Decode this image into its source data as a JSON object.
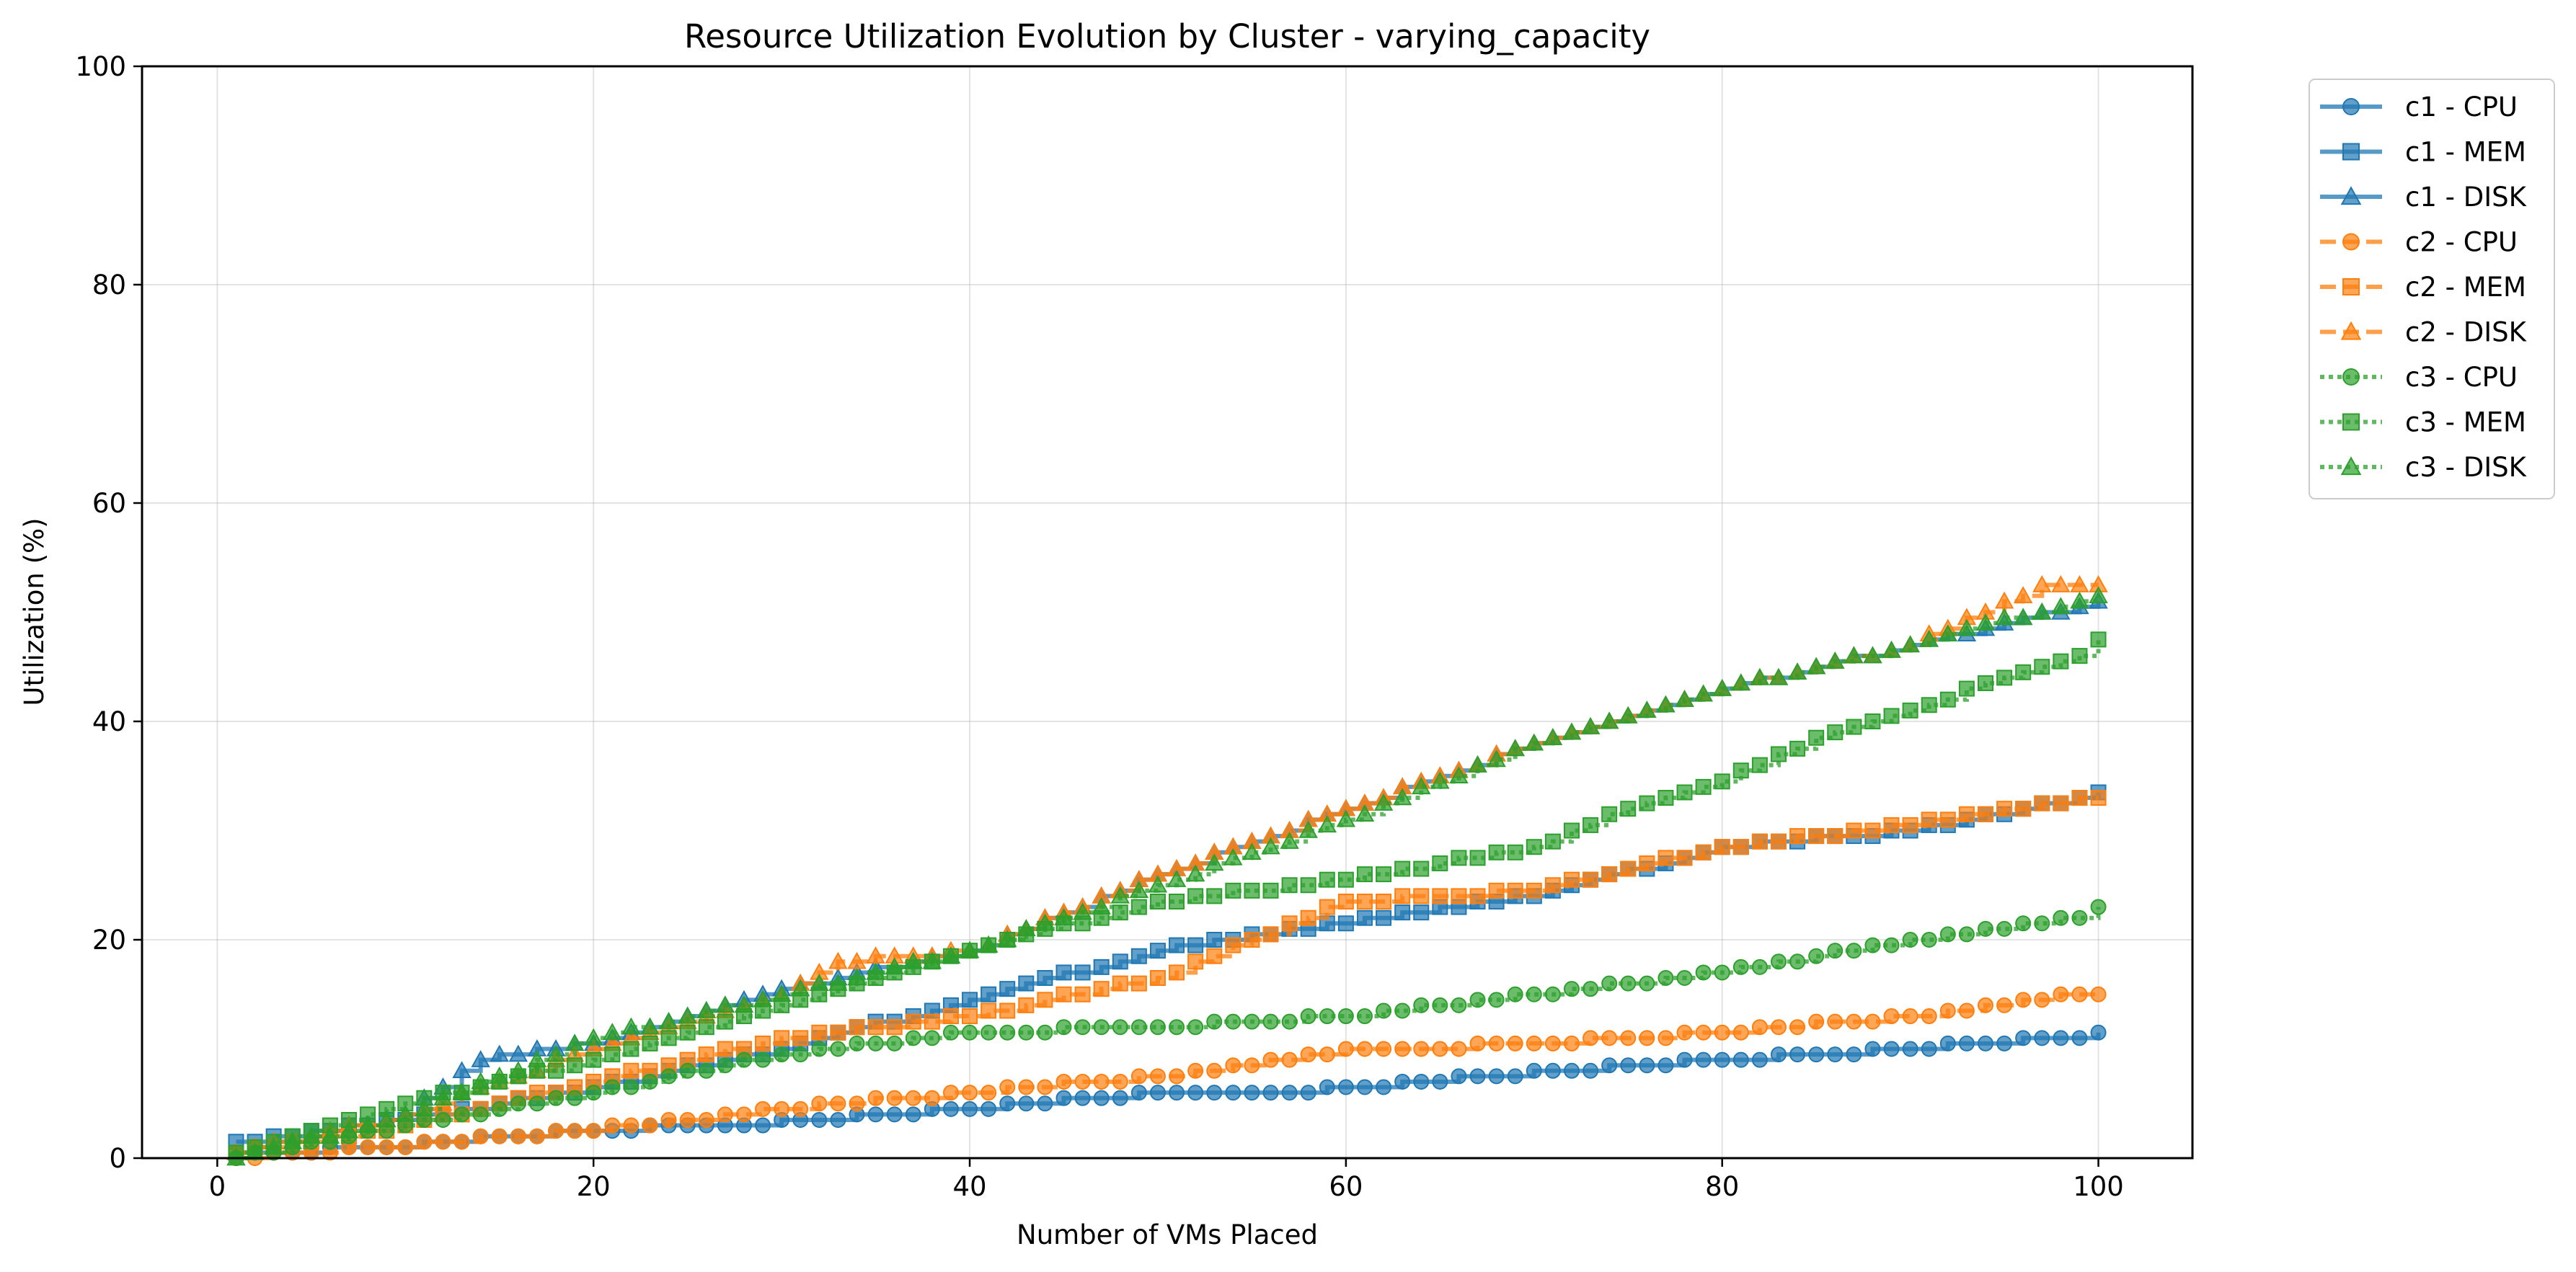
{
  "chart_data": {
    "type": "line",
    "title": "Resource Utilization Evolution by Cluster - varying_capacity",
    "xlabel": "Number of VMs Placed",
    "ylabel": "Utilization (%)",
    "xlim": [
      -4,
      105
    ],
    "ylim": [
      0,
      100
    ],
    "xticks": [
      0,
      20,
      40,
      60,
      80,
      100
    ],
    "yticks": [
      0,
      20,
      40,
      60,
      80,
      100
    ],
    "grid": true,
    "legend_position": "outside-top-right",
    "series": [
      {
        "name": "c1 - CPU",
        "color": "#1f77b4",
        "marker": "circle",
        "linestyle": "solid",
        "points": [
          [
            1,
            0.2
          ],
          [
            10,
            1.2
          ],
          [
            20,
            2.6
          ],
          [
            30,
            3.3
          ],
          [
            40,
            4.5
          ],
          [
            50,
            6
          ],
          [
            60,
            6.3
          ],
          [
            70,
            7.9
          ],
          [
            80,
            9
          ],
          [
            90,
            10
          ],
          [
            100,
            11.3
          ]
        ]
      },
      {
        "name": "c1 - MEM",
        "color": "#1f77b4",
        "marker": "square",
        "linestyle": "solid",
        "points": [
          [
            1,
            1.5
          ],
          [
            10,
            3.5
          ],
          [
            20,
            6.5
          ],
          [
            30,
            10
          ],
          [
            40,
            14.5
          ],
          [
            50,
            19
          ],
          [
            60,
            21.5
          ],
          [
            70,
            24
          ],
          [
            80,
            28.5
          ],
          [
            90,
            30
          ],
          [
            100,
            33.3
          ]
        ]
      },
      {
        "name": "c1 - DISK",
        "color": "#1f77b4",
        "marker": "triangle",
        "linestyle": "solid",
        "points": [
          [
            1,
            0.5
          ],
          [
            10,
            4
          ],
          [
            14,
            9
          ],
          [
            20,
            10.5
          ],
          [
            30,
            15.5
          ],
          [
            40,
            19
          ],
          [
            50,
            26
          ],
          [
            60,
            32
          ],
          [
            70,
            38
          ],
          [
            80,
            43
          ],
          [
            90,
            47
          ],
          [
            100,
            51
          ]
        ]
      },
      {
        "name": "c2 - CPU",
        "color": "#ff7f0e",
        "marker": "circle",
        "linestyle": "dashed",
        "points": [
          [
            1,
            0
          ],
          [
            10,
            1.2
          ],
          [
            20,
            2.6
          ],
          [
            30,
            4.5
          ],
          [
            40,
            6
          ],
          [
            50,
            7.5
          ],
          [
            60,
            9.8
          ],
          [
            70,
            10.5
          ],
          [
            80,
            11.5
          ],
          [
            90,
            13
          ],
          [
            100,
            15.2
          ]
        ]
      },
      {
        "name": "c2 - MEM",
        "color": "#ff7f0e",
        "marker": "square",
        "linestyle": "dashed",
        "points": [
          [
            1,
            0.5
          ],
          [
            10,
            3
          ],
          [
            20,
            7
          ],
          [
            30,
            11
          ],
          [
            40,
            13
          ],
          [
            50,
            16.5
          ],
          [
            60,
            23.5
          ],
          [
            70,
            24.5
          ],
          [
            80,
            28.5
          ],
          [
            90,
            30.5
          ],
          [
            100,
            33
          ]
        ]
      },
      {
        "name": "c2 - DISK",
        "color": "#ff7f0e",
        "marker": "triangle",
        "linestyle": "dashed",
        "points": [
          [
            1,
            0.5
          ],
          [
            10,
            4
          ],
          [
            20,
            10
          ],
          [
            30,
            15
          ],
          [
            33,
            18
          ],
          [
            40,
            19
          ],
          [
            50,
            26
          ],
          [
            60,
            32
          ],
          [
            70,
            38
          ],
          [
            80,
            43
          ],
          [
            90,
            47
          ],
          [
            97,
            52.5
          ],
          [
            100,
            52.5
          ]
        ]
      },
      {
        "name": "c3 - CPU",
        "color": "#2ca02c",
        "marker": "circle",
        "linestyle": "dotted",
        "points": [
          [
            1,
            0
          ],
          [
            10,
            3
          ],
          [
            20,
            6
          ],
          [
            30,
            9.5
          ],
          [
            40,
            11.5
          ],
          [
            50,
            12
          ],
          [
            60,
            13
          ],
          [
            70,
            15
          ],
          [
            80,
            17
          ],
          [
            90,
            20
          ],
          [
            99,
            22
          ],
          [
            100,
            23
          ]
        ]
      },
      {
        "name": "c3 - MEM",
        "color": "#2ca02c",
        "marker": "square",
        "linestyle": "dotted",
        "points": [
          [
            1,
            0.5
          ],
          [
            10,
            5
          ],
          [
            20,
            9
          ],
          [
            30,
            14
          ],
          [
            40,
            19
          ],
          [
            50,
            23.5
          ],
          [
            60,
            25.5
          ],
          [
            70,
            28.5
          ],
          [
            75,
            32
          ],
          [
            80,
            34.5
          ],
          [
            85,
            38.5
          ],
          [
            90,
            41
          ],
          [
            95,
            44
          ],
          [
            99,
            46
          ],
          [
            100,
            47.3
          ]
        ]
      },
      {
        "name": "c3 - DISK",
        "color": "#2ca02c",
        "marker": "triangle",
        "linestyle": "dotted",
        "points": [
          [
            1,
            0
          ],
          [
            10,
            4
          ],
          [
            20,
            11
          ],
          [
            30,
            15
          ],
          [
            40,
            19
          ],
          [
            50,
            25
          ],
          [
            60,
            31
          ],
          [
            70,
            38
          ],
          [
            80,
            43
          ],
          [
            90,
            47
          ],
          [
            100,
            51.5
          ]
        ]
      }
    ]
  }
}
